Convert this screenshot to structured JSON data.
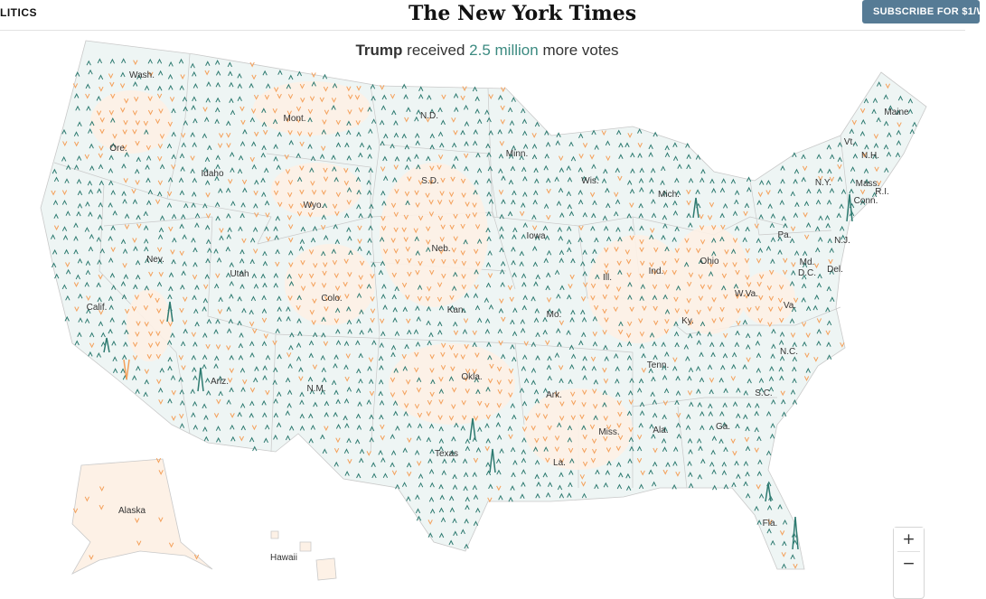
{
  "header": {
    "section": "LITICS",
    "logo": "The New York Times",
    "subscribe_label": "SUBSCRIBE FOR $1/W"
  },
  "headline": {
    "winner": "Trump",
    "verb": "received",
    "margin": "2.5 million",
    "suffix": "more votes"
  },
  "colors": {
    "rep": "#f4a05a",
    "dem": "#2d7a70",
    "rep_fill": "#fdf1e6",
    "dem_fill": "#eef5f4",
    "border": "#c9c9c9"
  },
  "states": [
    "Wash.",
    "Ore.",
    "Calif.",
    "Nev.",
    "Idaho",
    "Mont.",
    "Wyo.",
    "Utah",
    "Ariz.",
    "Colo.",
    "N.M.",
    "N.D.",
    "S.D.",
    "Neb.",
    "Kan.",
    "Okla.",
    "Texas",
    "Minn.",
    "Iowa",
    "Mo.",
    "Ark.",
    "La.",
    "Wis.",
    "Ill.",
    "Mich.",
    "Ind.",
    "Ohio",
    "Ky.",
    "Tenn.",
    "Miss.",
    "Ala.",
    "Ga.",
    "Fla.",
    "S.C.",
    "N.C.",
    "Va.",
    "W.Va.",
    "Md.",
    "Del.",
    "D.C.",
    "Pa.",
    "N.J.",
    "N.Y.",
    "Conn.",
    "R.I.",
    "Mass.",
    "Vt.",
    "N.H.",
    "Maine",
    "Alaska",
    "Hawaii"
  ],
  "zoom": {
    "in": "+",
    "out": "−"
  }
}
